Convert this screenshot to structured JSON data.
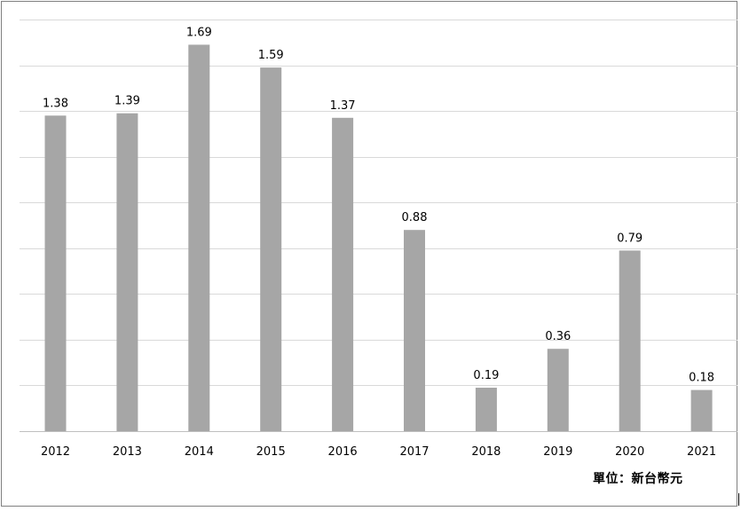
{
  "chart_data": {
    "type": "bar",
    "categories": [
      "2012",
      "2013",
      "2014",
      "2015",
      "2016",
      "2017",
      "2018",
      "2019",
      "2020",
      "2021"
    ],
    "values": [
      1.38,
      1.39,
      1.69,
      1.59,
      1.37,
      0.88,
      0.19,
      0.36,
      0.79,
      0.18
    ],
    "data_labels": [
      "1.38",
      "1.39",
      "1.69",
      "1.59",
      "1.37",
      "0.88",
      "0.19",
      "0.36",
      "0.79",
      "0.18"
    ],
    "ylim": [
      0,
      1.8
    ],
    "y_gridline_step": 0.2,
    "grid": true,
    "legend": "none",
    "y_tick_labels_shown": false,
    "bar_color": "#a6a6a6",
    "gridline_color": "#d9d9d9",
    "axis_color": "#bfbfbf"
  },
  "unit_note": "單位：新台幣元"
}
